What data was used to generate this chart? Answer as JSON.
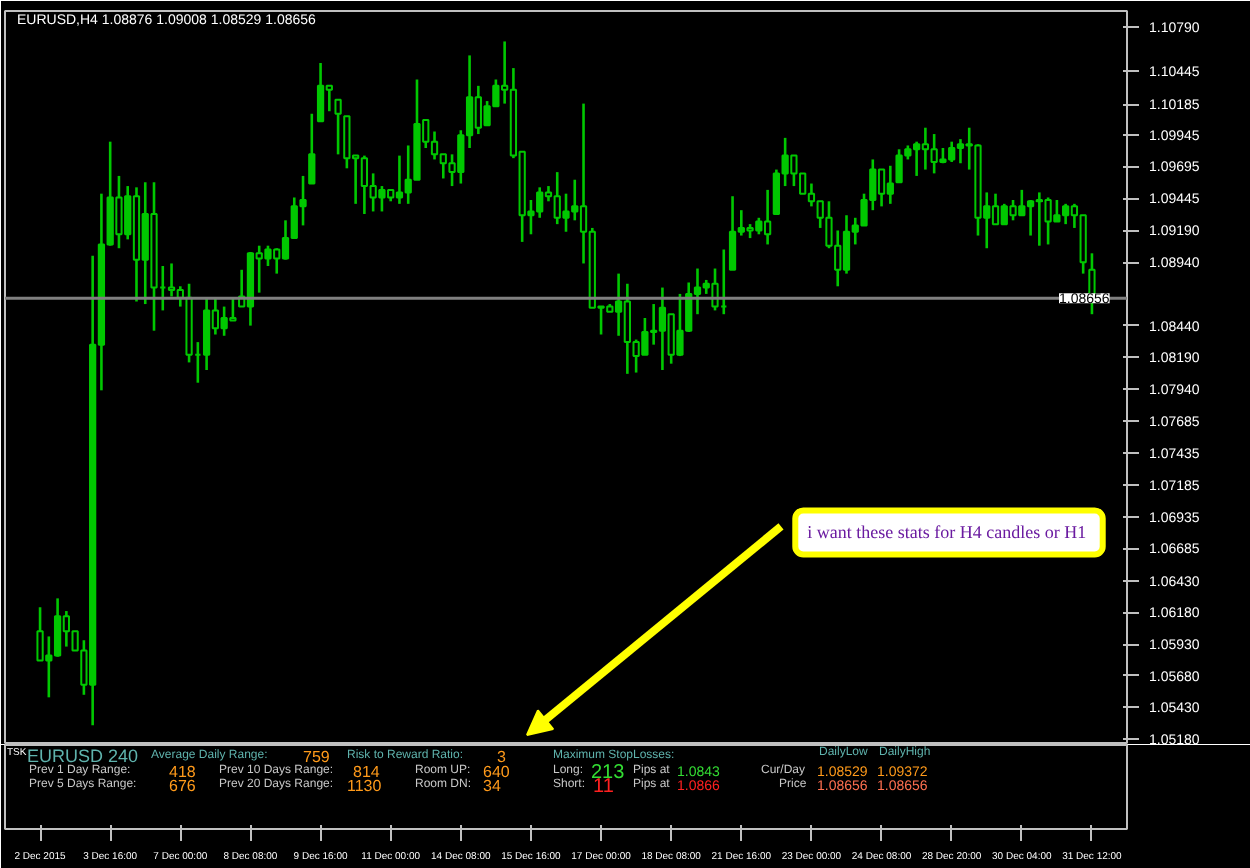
{
  "chart_data": {
    "type": "candlestick",
    "title": "EURUSD,H4  1.08876 1.09008 1.08529 1.08656",
    "color": "#00c800",
    "categories": [
      "2 Dec 2015",
      null,
      null,
      null,
      null,
      null,
      null,
      null,
      "3 Dec 16:00",
      null,
      null,
      null,
      null,
      null,
      null,
      null,
      "7 Dec 00:00",
      null,
      null,
      null,
      null,
      null,
      null,
      null,
      "8 Dec 08:00",
      null,
      null,
      null,
      null,
      null,
      null,
      null,
      "9 Dec 16:00",
      null,
      null,
      null,
      null,
      null,
      null,
      null,
      "11 Dec 00:00",
      null,
      null,
      null,
      null,
      null,
      null,
      null,
      "14 Dec 08:00",
      null,
      null,
      null,
      null,
      null,
      null,
      null,
      "15 Dec 16:00",
      null,
      null,
      null,
      null,
      null,
      null,
      null,
      "17 Dec 00:00",
      null,
      null,
      null,
      null,
      null,
      null,
      null,
      "18 Dec 08:00",
      null,
      null,
      null,
      null,
      null,
      null,
      null,
      "21 Dec 16:00",
      null,
      null,
      null,
      null,
      null,
      null,
      null,
      "23 Dec 00:00",
      null,
      null,
      null,
      null,
      null,
      null,
      null,
      "24 Dec 08:00",
      null,
      null,
      null,
      null,
      null,
      null,
      null,
      "28 Dec 20:00",
      null,
      null,
      null,
      null,
      null,
      null,
      null,
      "30 Dec 04:00",
      null,
      null,
      null,
      null,
      null,
      null,
      null,
      "31 Dec 12:00"
    ],
    "ohlc": [
      [
        1.0603,
        1.0622,
        1.058,
        1.058
      ],
      [
        1.058,
        1.0599,
        1.0551,
        1.0584
      ],
      [
        1.0584,
        1.0629,
        1.0583,
        1.0615
      ],
      [
        1.0615,
        1.0619,
        1.0591,
        1.0603
      ],
      [
        1.0603,
        1.0603,
        1.0588,
        1.0588
      ],
      [
        1.0588,
        1.0596,
        1.0553,
        1.0561
      ],
      [
        1.0561,
        1.0899,
        1.0529,
        1.0829
      ],
      [
        1.0829,
        1.0948,
        1.0793,
        1.0908
      ],
      [
        1.0908,
        1.0989,
        1.0907,
        1.0945
      ],
      [
        1.0945,
        1.0962,
        1.0905,
        1.0916
      ],
      [
        1.0916,
        1.0954,
        1.0912,
        1.0946
      ],
      [
        1.0946,
        1.0953,
        1.0863,
        1.0896
      ],
      [
        1.0896,
        1.0957,
        1.0861,
        1.0932
      ],
      [
        1.0932,
        1.0957,
        1.084,
        1.0874
      ],
      [
        1.0874,
        1.0891,
        1.0856,
        1.0874
      ],
      [
        1.0874,
        1.0893,
        1.0867,
        1.0872
      ],
      [
        1.0872,
        1.0875,
        1.0859,
        1.0866
      ],
      [
        1.0866,
        1.0877,
        1.0815,
        1.0821
      ],
      [
        1.0821,
        1.0831,
        1.0799,
        1.0821
      ],
      [
        1.0821,
        1.0866,
        1.0809,
        1.0856
      ],
      [
        1.0856,
        1.0866,
        1.0837,
        1.0842
      ],
      [
        1.0842,
        1.0859,
        1.0836,
        1.085
      ],
      [
        1.085,
        1.0866,
        1.0848,
        1.0848
      ],
      [
        1.0867,
        1.0888,
        1.0859,
        1.0859
      ],
      [
        1.0859,
        1.0902,
        1.0844,
        1.0901
      ],
      [
        1.0901,
        1.0907,
        1.087,
        1.0897
      ],
      [
        1.0897,
        1.0907,
        1.0891,
        1.0904
      ],
      [
        1.0904,
        1.0905,
        1.0885,
        1.0897
      ],
      [
        1.0897,
        1.0927,
        1.0896,
        1.0913
      ],
      [
        1.0913,
        1.0945,
        1.0913,
        1.0938
      ],
      [
        1.0938,
        1.0962,
        1.0923,
        1.0943
      ],
      [
        1.0956,
        1.1011,
        1.0956,
        1.0979
      ],
      [
        1.1005,
        1.1051,
        1.1005,
        1.1033
      ],
      [
        1.1033,
        1.1033,
        1.1013,
        1.103
      ],
      [
        1.1022,
        1.1022,
        1.0979,
        1.1011
      ],
      [
        1.1009,
        1.1009,
        1.0968,
        1.0976
      ],
      [
        1.0978,
        1.0978,
        1.094,
        1.0976
      ],
      [
        1.0976,
        1.0978,
        1.0932,
        1.0954
      ],
      [
        1.0954,
        1.0964,
        1.0934,
        1.0945
      ],
      [
        1.0945,
        1.0954,
        1.0934,
        1.0951
      ],
      [
        1.0951,
        1.0951,
        1.0942,
        1.0945
      ],
      [
        1.0945,
        1.0978,
        1.094,
        1.0949
      ],
      [
        1.0949,
        1.0986,
        1.094,
        1.0959
      ],
      [
        1.0959,
        1.1038,
        1.0959,
        1.1003
      ],
      [
        1.1006,
        1.1006,
        1.0984,
        1.0989
      ],
      [
        1.0989,
        1.0997,
        1.0975,
        1.0979
      ],
      [
        1.0979,
        1.0979,
        1.096,
        1.0972
      ],
      [
        1.0972,
        1.0979,
        1.0954,
        1.0965
      ],
      [
        1.0965,
        1.0998,
        1.0956,
        1.0994
      ],
      [
        1.0994,
        1.1057,
        1.0984,
        1.1024
      ],
      [
        1.1024,
        1.1033,
        1.0995,
        1.1
      ],
      [
        1.1002,
        1.1021,
        1.1002,
        1.1017
      ],
      [
        1.1017,
        1.1038,
        1.1017,
        1.1033
      ],
      [
        1.1033,
        1.1068,
        1.1019,
        1.103
      ],
      [
        1.103,
        1.1047,
        1.0976,
        1.0978
      ],
      [
        1.0981,
        1.0981,
        1.091,
        1.0931
      ],
      [
        1.0931,
        1.0943,
        1.0916,
        1.0934
      ],
      [
        1.0934,
        1.0953,
        1.0929,
        1.0949
      ],
      [
        1.0949,
        1.0954,
        1.0942,
        1.0946
      ],
      [
        1.0946,
        1.0965,
        1.0924,
        1.0929
      ],
      [
        1.0929,
        1.0948,
        1.0918,
        1.0934
      ],
      [
        1.0934,
        1.0959,
        1.0927,
        1.0938
      ],
      [
        1.0938,
        1.1019,
        1.0893,
        1.0918
      ],
      [
        1.0918,
        1.0921,
        1.0858,
        1.0858
      ],
      [
        1.0858,
        1.0859,
        1.0837,
        1.0859
      ],
      [
        1.0859,
        1.0861,
        1.0855,
        1.0855
      ],
      [
        1.0855,
        1.0885,
        1.0836,
        1.0863
      ],
      [
        1.0863,
        1.0877,
        1.0806,
        1.0831
      ],
      [
        1.0831,
        1.0833,
        1.0807,
        1.082
      ],
      [
        1.0821,
        1.085,
        1.0821,
        1.0839
      ],
      [
        1.0839,
        1.0861,
        1.0829,
        1.084
      ],
      [
        1.084,
        1.0874,
        1.0809,
        1.0858
      ],
      [
        1.0853,
        1.0853,
        1.0814,
        1.0821
      ],
      [
        1.0821,
        1.0869,
        1.082,
        1.084
      ],
      [
        1.084,
        1.0878,
        1.0839,
        1.0869
      ],
      [
        1.0869,
        1.0889,
        1.0853,
        1.0874
      ],
      [
        1.0874,
        1.088,
        1.0869,
        1.0877
      ],
      [
        1.0877,
        1.0889,
        1.0856,
        1.0859
      ],
      [
        1.0859,
        1.0904,
        1.0853,
        1.0859
      ],
      [
        1.0888,
        1.0946,
        1.0888,
        1.0918
      ],
      [
        1.0918,
        1.0935,
        1.0915,
        1.0921
      ],
      [
        1.0921,
        1.0924,
        1.0913,
        1.0919
      ],
      [
        1.0919,
        1.0929,
        1.0916,
        1.0926
      ],
      [
        1.0926,
        1.0951,
        1.0908,
        1.0916
      ],
      [
        1.0932,
        1.0967,
        1.0932,
        1.0964
      ],
      [
        1.0964,
        1.0992,
        1.0954,
        1.0978
      ],
      [
        1.0978,
        1.0978,
        1.0954,
        1.0964
      ],
      [
        1.0964,
        1.0964,
        1.0948,
        1.0948
      ],
      [
        1.0948,
        1.0956,
        1.0938,
        1.0942
      ],
      [
        1.0942,
        1.0942,
        1.0921,
        1.0929
      ],
      [
        1.0929,
        1.0942,
        1.0905,
        1.0907
      ],
      [
        1.0907,
        1.0919,
        1.0875,
        1.0888
      ],
      [
        1.0888,
        1.0931,
        1.0885,
        1.0918
      ],
      [
        1.0918,
        1.0929,
        1.0908,
        1.0923
      ],
      [
        1.0923,
        1.0948,
        1.0923,
        1.0943
      ],
      [
        1.0943,
        1.0975,
        1.0935,
        1.0967
      ],
      [
        1.0967,
        1.0967,
        1.0938,
        1.0948
      ],
      [
        1.0948,
        1.097,
        1.094,
        1.0956
      ],
      [
        1.0957,
        1.0983,
        1.0957,
        1.0978
      ],
      [
        1.0978,
        1.0986,
        1.0975,
        1.0983
      ],
      [
        1.0983,
        1.0989,
        1.0962,
        1.0987
      ],
      [
        1.0987,
        1.1,
        1.0967,
        1.0983
      ],
      [
        1.0983,
        1.0995,
        1.0964,
        1.0973
      ],
      [
        1.0973,
        1.0984,
        1.0972,
        1.0975
      ],
      [
        1.0975,
        1.0989,
        1.0973,
        1.0984
      ],
      [
        1.0984,
        1.0991,
        1.0972,
        1.0987
      ],
      [
        1.0987,
        1.1,
        1.0967,
        1.0986
      ],
      [
        1.0986,
        1.0987,
        1.0915,
        1.0929
      ],
      [
        1.0929,
        1.0949,
        1.0905,
        1.0938
      ],
      [
        1.0938,
        1.0948,
        1.0924,
        1.0924
      ],
      [
        1.0924,
        1.094,
        1.0924,
        1.0938
      ],
      [
        1.0938,
        1.0943,
        1.0927,
        1.0931
      ],
      [
        1.0931,
        1.0951,
        1.0931,
        1.0938
      ],
      [
        1.0938,
        1.0943,
        1.0915,
        1.0942
      ],
      [
        1.0942,
        1.0949,
        1.0907,
        1.0943
      ],
      [
        1.0943,
        1.0945,
        1.0908,
        1.0926
      ],
      [
        1.0926,
        1.0943,
        1.0926,
        1.0931
      ],
      [
        1.0931,
        1.094,
        1.0924,
        1.0938
      ],
      [
        1.0938,
        1.094,
        1.0921,
        1.0931
      ],
      [
        1.0931,
        1.0931,
        1.0885,
        1.0894
      ],
      [
        1.0888,
        1.0901,
        1.0853,
        1.0866
      ]
    ],
    "ylim": [
      1.0515,
      1.1092
    ],
    "yticks": [
      {
        "value": 1.1079,
        "label": "1.10790"
      },
      {
        "value": 1.10445,
        "label": "1.10445"
      },
      {
        "value": 1.10185,
        "label": "1.10185"
      },
      {
        "value": 1.09945,
        "label": "1.09945"
      },
      {
        "value": 1.09695,
        "label": "1.09695"
      },
      {
        "value": 1.09445,
        "label": "1.09445"
      },
      {
        "value": 1.0919,
        "label": "1.09190"
      },
      {
        "value": 1.0894,
        "label": "1.08940"
      },
      {
        "value": 1.0844,
        "label": "1.08440"
      },
      {
        "value": 1.0819,
        "label": "1.08190"
      },
      {
        "value": 1.0794,
        "label": "1.07940"
      },
      {
        "value": 1.07685,
        "label": "1.07685"
      },
      {
        "value": 1.07435,
        "label": "1.07435"
      },
      {
        "value": 1.07185,
        "label": "1.07185"
      },
      {
        "value": 1.06935,
        "label": "1.06935"
      },
      {
        "value": 1.06685,
        "label": "1.06685"
      },
      {
        "value": 1.0643,
        "label": "1.06430"
      },
      {
        "value": 1.0618,
        "label": "1.06180"
      },
      {
        "value": 1.0593,
        "label": "1.05930"
      },
      {
        "value": 1.0568,
        "label": "1.05680"
      },
      {
        "value": 1.0543,
        "label": "1.05430"
      },
      {
        "value": 1.0518,
        "label": "1.05180"
      }
    ],
    "ref_lines": [
      {
        "axis": "y",
        "value": 1.08656,
        "label": "1.08656",
        "color": "#808080"
      }
    ],
    "annotations": [
      "EURUSD  240",
      "Average Daily Range:",
      "759",
      "Risk to Reward Ratio:",
      "3",
      "Maximum StopLosses:",
      "DailyLow",
      "DailyHigh",
      "Prev 1 Day Range:",
      "418",
      "Prev 10 Days Range:",
      "814",
      "Room UP:",
      "640",
      "Long:",
      "213",
      "Pips at",
      "1.0843",
      "Cur/Day",
      "1.08529",
      "1.09372",
      "Prev 5 Days Range:",
      "676",
      "Prev 20 Days Range:",
      "1130",
      "Room DN:",
      "34",
      "Short:",
      "11",
      "Pips at",
      "1.0866",
      "Price",
      "1.08656",
      "1.08656",
      "i want these stats for H4 candles  or H1",
      "TSK"
    ]
  }
}
